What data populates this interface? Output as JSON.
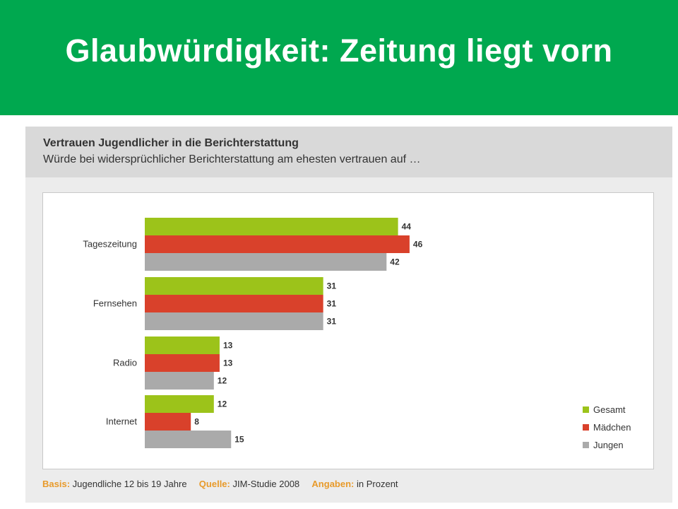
{
  "header": {
    "title": "Glaubwürdigkeit: Zeitung liegt vorn"
  },
  "chart_data": {
    "type": "bar",
    "orientation": "horizontal",
    "title": "Vertrauen Jugendlicher in die Berichterstattung",
    "subtitle": "Würde bei widersprüchlicher Berichterstattung am ehesten vertrauen auf …",
    "categories": [
      "Tageszeitung",
      "Fernsehen",
      "Radio",
      "Internet"
    ],
    "series": [
      {
        "name": "Gesamt",
        "color": "#9cc31a",
        "values": [
          44,
          31,
          13,
          12
        ]
      },
      {
        "name": "Mädchen",
        "color": "#d9412b",
        "values": [
          46,
          31,
          13,
          8
        ]
      },
      {
        "name": "Jungen",
        "color": "#aaaaaa",
        "values": [
          42,
          31,
          12,
          15
        ]
      }
    ],
    "xlim": [
      0,
      50
    ],
    "grid": false,
    "legend_position": "bottom-right"
  },
  "footer": {
    "basis_label": "Basis:",
    "basis_value": "Jugendliche 12 bis 19 Jahre",
    "source_label": "Quelle:",
    "source_value": "JIM-Studie 2008",
    "unit_label": "Angaben:",
    "unit_value": "in Prozent"
  }
}
